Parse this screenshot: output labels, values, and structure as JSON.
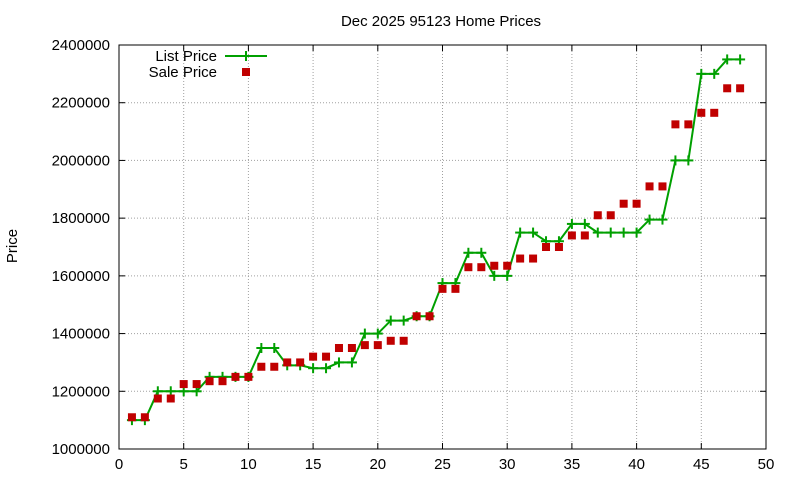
{
  "chart_data": {
    "type": "line",
    "title": "Dec 2025 95123 Home Prices",
    "xlabel": "",
    "ylabel": "Price",
    "xlim": [
      0,
      50
    ],
    "ylim": [
      1000000,
      2400000
    ],
    "xticks": [
      "0",
      "5",
      "10",
      "15",
      "20",
      "25",
      "30",
      "35",
      "40",
      "45",
      "50"
    ],
    "yticks": [
      "1000000",
      "1200000",
      "1400000",
      "1600000",
      "1800000",
      "2000000",
      "2200000",
      "2400000"
    ],
    "grid": true,
    "legend_position": "top-left",
    "series": [
      {
        "name": "List Price",
        "style": "line+cross",
        "color": "#00a000",
        "x": [
          1,
          2,
          3,
          4,
          5,
          6,
          7,
          8,
          9,
          10,
          11,
          12,
          13,
          14,
          15,
          16,
          17,
          18,
          19,
          20,
          21,
          22,
          23,
          24,
          25,
          26,
          27,
          28,
          29,
          30,
          31,
          32,
          33,
          34,
          35,
          36,
          37,
          38,
          39,
          40,
          41,
          42,
          43,
          44,
          45,
          46,
          47,
          48
        ],
        "y": [
          1100000,
          1100000,
          1200000,
          1200000,
          1200000,
          1200000,
          1250000,
          1250000,
          1250000,
          1250000,
          1350000,
          1350000,
          1290000,
          1290000,
          1280000,
          1280000,
          1300000,
          1300000,
          1400000,
          1400000,
          1445000,
          1445000,
          1460000,
          1460000,
          1575000,
          1575000,
          1680000,
          1680000,
          1600000,
          1600000,
          1750000,
          1750000,
          1720000,
          1720000,
          1780000,
          1780000,
          1750000,
          1750000,
          1750000,
          1750000,
          1795000,
          1795000,
          2000000,
          2000000,
          2300000,
          2300000,
          2350000,
          2350000
        ]
      },
      {
        "name": "Sale Price",
        "style": "square",
        "color": "#c00000",
        "x": [
          1,
          2,
          3,
          4,
          5,
          6,
          7,
          8,
          9,
          10,
          11,
          12,
          13,
          14,
          15,
          16,
          17,
          18,
          19,
          20,
          21,
          22,
          23,
          24,
          25,
          26,
          27,
          28,
          29,
          30,
          31,
          32,
          33,
          34,
          35,
          36,
          37,
          38,
          39,
          40,
          41,
          42,
          43,
          44,
          45,
          46,
          47,
          48
        ],
        "y": [
          1110000,
          1110000,
          1175000,
          1175000,
          1225000,
          1225000,
          1235000,
          1235000,
          1250000,
          1250000,
          1285000,
          1285000,
          1300000,
          1300000,
          1320000,
          1320000,
          1350000,
          1350000,
          1360000,
          1360000,
          1375000,
          1375000,
          1460000,
          1460000,
          1555000,
          1555000,
          1630000,
          1630000,
          1635000,
          1635000,
          1660000,
          1660000,
          1700000,
          1700000,
          1740000,
          1740000,
          1810000,
          1810000,
          1850000,
          1850000,
          1910000,
          1910000,
          2125000,
          2125000,
          2165000,
          2165000,
          2250000,
          2250000
        ]
      }
    ]
  }
}
